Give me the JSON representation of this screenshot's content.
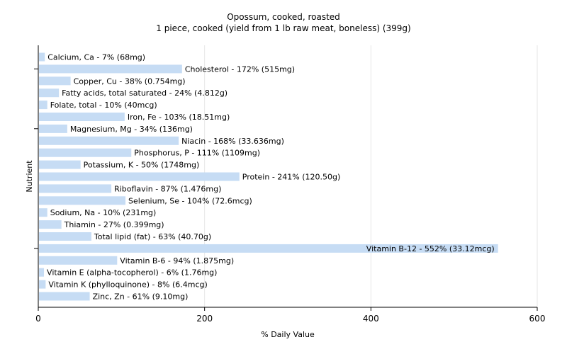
{
  "chart_data": {
    "type": "bar",
    "orientation": "horizontal",
    "title": "Opossum, cooked, roasted",
    "subtitle": "1 piece, cooked (yield from 1 lb raw meat, boneless) (399g)",
    "xlabel": "% Daily Value",
    "ylabel": "Nutrient",
    "xlim": [
      0,
      600
    ],
    "xticks": [
      "0",
      "200",
      "400",
      "600"
    ],
    "grid": "vertical",
    "colors": {
      "bar": "#c6dcf4",
      "grid": "#e6e6e6",
      "axis": "#000000"
    },
    "categories": [
      "Calcium, Ca",
      "Cholesterol",
      "Copper, Cu",
      "Fatty acids, total saturated",
      "Folate, total",
      "Iron, Fe",
      "Magnesium, Mg",
      "Niacin",
      "Phosphorus, P",
      "Potassium, K",
      "Protein",
      "Riboflavin",
      "Selenium, Se",
      "Sodium, Na",
      "Thiamin",
      "Total lipid (fat)",
      "Vitamin B-12",
      "Vitamin B-6",
      "Vitamin E (alpha-tocopherol)",
      "Vitamin K (phylloquinone)",
      "Zinc, Zn"
    ],
    "values": [
      7,
      172,
      38,
      24,
      10,
      103,
      34,
      168,
      111,
      50,
      241,
      87,
      104,
      10,
      27,
      63,
      552,
      94,
      6,
      8,
      61
    ],
    "labels": [
      "Calcium, Ca - 7% (68mg)",
      "Cholesterol - 172% (515mg)",
      "Copper, Cu - 38% (0.754mg)",
      "Fatty acids, total saturated - 24% (4.812g)",
      "Folate, total - 10% (40mcg)",
      "Iron, Fe - 103% (18.51mg)",
      "Magnesium, Mg - 34% (136mg)",
      "Niacin - 168% (33.636mg)",
      "Phosphorus, P - 111% (1109mg)",
      "Potassium, K - 50% (1748mg)",
      "Protein - 241% (120.50g)",
      "Riboflavin - 87% (1.476mg)",
      "Selenium, Se - 104% (72.6mcg)",
      "Sodium, Na - 10% (231mg)",
      "Thiamin - 27% (0.399mg)",
      "Total lipid (fat) - 63% (40.70g)",
      "Vitamin B-12 - 552% (33.12mcg)",
      "Vitamin B-6 - 94% (1.875mg)",
      "Vitamin E (alpha-tocopherol) - 6% (1.76mg)",
      "Vitamin K (phylloquinone) - 8% (6.4mcg)",
      "Zinc, Zn - 61% (9.10mg)"
    ]
  }
}
